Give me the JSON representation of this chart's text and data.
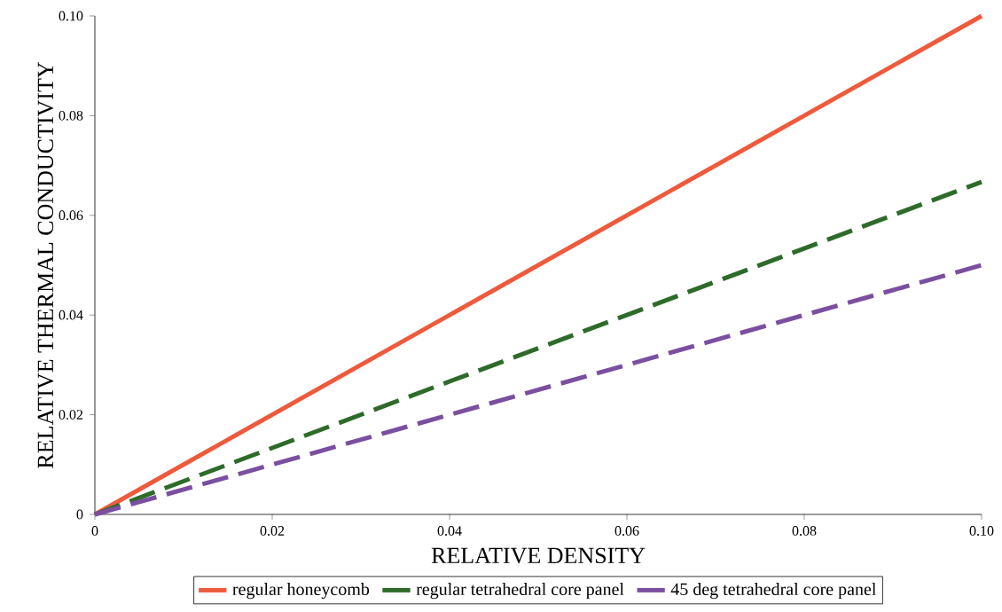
{
  "chart_data": {
    "type": "line",
    "xlabel": "RELATIVE DENSITY",
    "ylabel": "RELATIVE THERMAL CONDUCTIVITY",
    "x": [
      0,
      0.1
    ],
    "series": [
      {
        "name": "regular honeycomb",
        "color": "#ee5a3c",
        "values": [
          0,
          0.1
        ],
        "line_style": "solid"
      },
      {
        "name": "regular tetrahedral core panel",
        "color": "#2e6b2a",
        "values": [
          0,
          0.0667
        ],
        "line_style": "dashed"
      },
      {
        "name": "45 deg tetrahedral core panel",
        "color": "#7b4fa0",
        "values": [
          0,
          0.05
        ],
        "line_style": "dashed"
      }
    ],
    "xlim": [
      0,
      0.1
    ],
    "ylim": [
      0,
      0.1
    ],
    "xticks": [
      {
        "value": 0,
        "label": "0"
      },
      0.02,
      0.04,
      0.06,
      0.08,
      {
        "value": 0.1,
        "label": "0.10"
      }
    ],
    "yticks": [
      {
        "value": 0,
        "label": "0"
      },
      0.02,
      0.04,
      0.06,
      0.08,
      {
        "value": 0.1,
        "label": "0.10"
      }
    ],
    "grid": false,
    "legend": "bottom",
    "marker": "none"
  }
}
